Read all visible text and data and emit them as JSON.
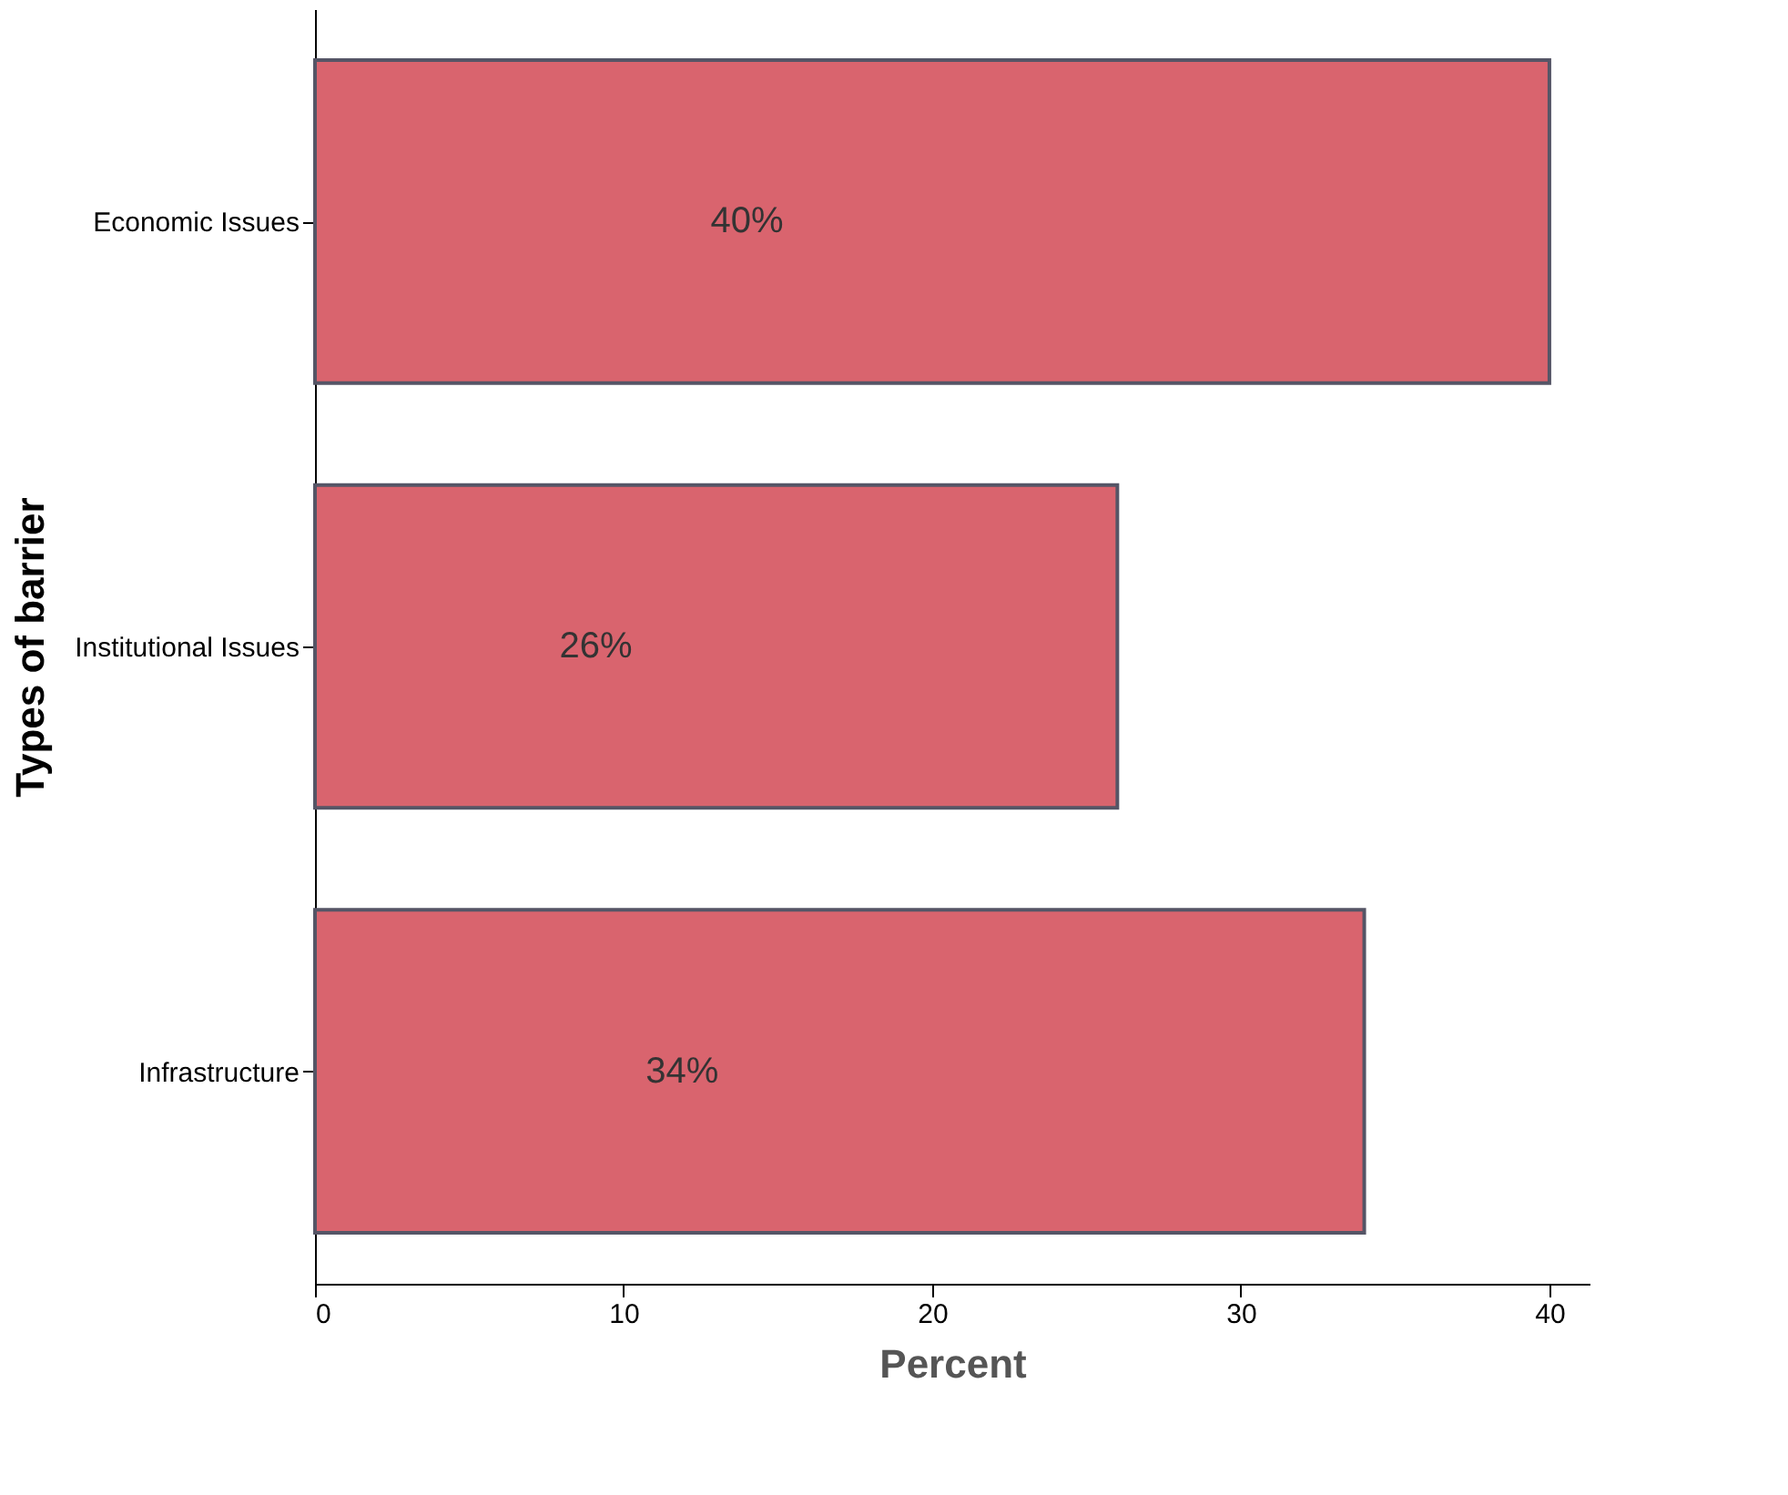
{
  "chart_data": {
    "type": "bar",
    "orientation": "horizontal",
    "categories": [
      "Economic Issues",
      "Institutional Issues",
      "Infrastructure"
    ],
    "values": [
      40,
      26,
      34
    ],
    "value_labels": [
      "40%",
      "26%",
      "34%"
    ],
    "color": "#d9646e",
    "xlabel": "Percent",
    "ylabel": "Types of barrier",
    "xlim": [
      0,
      41.3
    ],
    "xticks": [
      0,
      10,
      20,
      30,
      40
    ],
    "grid": false
  }
}
